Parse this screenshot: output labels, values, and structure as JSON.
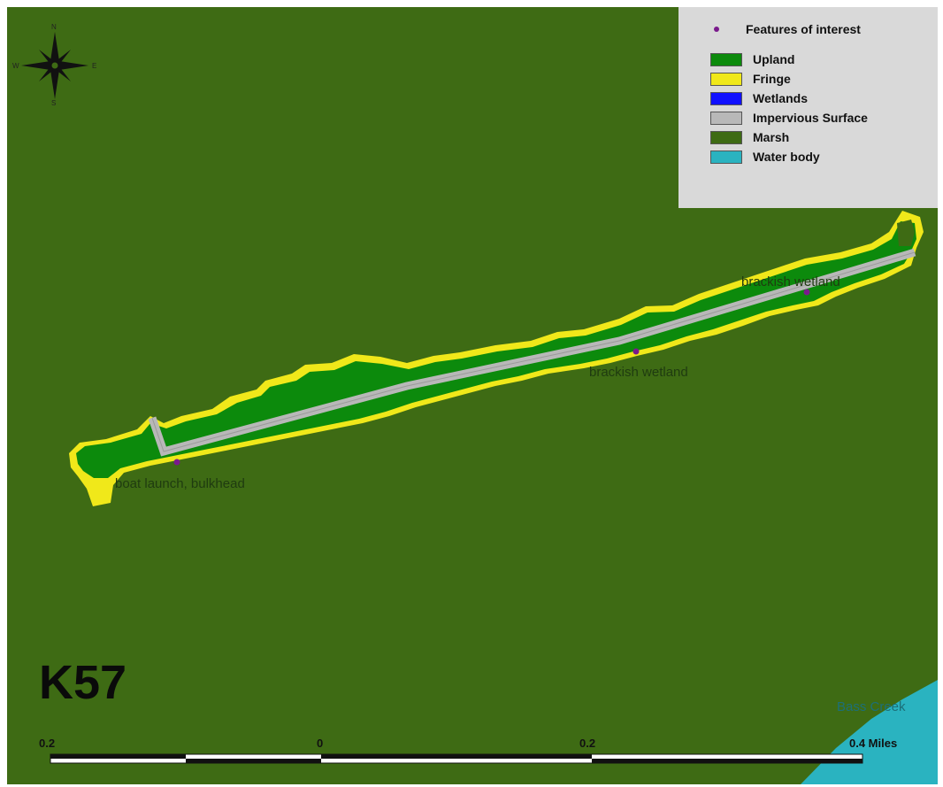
{
  "colors": {
    "background_marsh": "#3e6b14",
    "upland": "#0c8a0c",
    "fringe": "#e8e10c",
    "wetlands": "#1010ff",
    "impervious": "#b8b8b8",
    "marsh": "#3e6b14",
    "water": "#2ab3c0",
    "feature_point": "#7a1a8c"
  },
  "legend": {
    "features_label": "Features of interest",
    "items": [
      {
        "label": "Upland",
        "color": "#0c8a0c"
      },
      {
        "label": "Fringe",
        "color": "#f0e81a"
      },
      {
        "label": "Wetlands",
        "color": "#1010ff"
      },
      {
        "label": "Impervious Surface",
        "color": "#b8b8b8"
      },
      {
        "label": "Marsh",
        "color": "#3e6b14"
      },
      {
        "label": "Water body",
        "color": "#2ab3c0"
      }
    ]
  },
  "map_labels": {
    "feature_1": "boat launch, bulkhead",
    "feature_2": "brackish wetland",
    "feature_3": "brackish wetland",
    "water_name": "Bass Creek"
  },
  "site_code": "K57",
  "scale_bar": {
    "ticks": [
      "0.2",
      "0",
      "0.2",
      "0.4 Miles"
    ]
  },
  "compass": {
    "n": "N",
    "s": "S",
    "e": "E",
    "w": "W",
    "icon": "compass-rose-icon"
  }
}
